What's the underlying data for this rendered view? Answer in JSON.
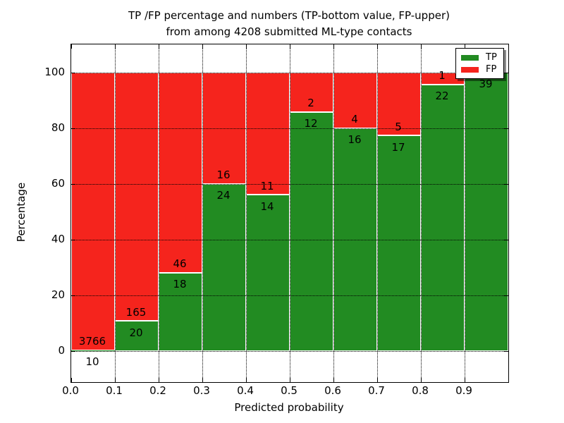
{
  "chart_data": {
    "type": "bar",
    "stacked": true,
    "title_line1": "TP /FP percentage and numbers (TP-bottom value, FP-upper)",
    "title_line2": "from among 4208 submitted ML-type contacts",
    "xlabel": "Predicted probability",
    "ylabel": "Percentage",
    "total_contacts": 4208,
    "xlim": [
      0.0,
      1.0
    ],
    "ylim": [
      -11,
      110
    ],
    "grid": "dotted black, horizontal at y multiples of 20, vertical at x multiples of 0.1",
    "legend_position": "upper right",
    "x_ticks": [
      "0.0",
      "0.1",
      "0.2",
      "0.3",
      "0.4",
      "0.5",
      "0.6",
      "0.7",
      "0.8",
      "0.9"
    ],
    "y_ticks": [
      0,
      20,
      40,
      60,
      80,
      100
    ],
    "legend": [
      {
        "label": "TP",
        "color": "#228b22"
      },
      {
        "label": "FP",
        "color": "#f5241d"
      }
    ],
    "bins": [
      {
        "x0": 0.0,
        "x1": 0.1,
        "tp": 10,
        "fp": 3766,
        "tp_pct": 0.26,
        "fp_pct": 99.74
      },
      {
        "x0": 0.1,
        "x1": 0.2,
        "tp": 20,
        "fp": 165,
        "tp_pct": 10.81,
        "fp_pct": 89.19
      },
      {
        "x0": 0.2,
        "x1": 0.3,
        "tp": 18,
        "fp": 46,
        "tp_pct": 28.13,
        "fp_pct": 71.87
      },
      {
        "x0": 0.3,
        "x1": 0.4,
        "tp": 24,
        "fp": 16,
        "tp_pct": 60.0,
        "fp_pct": 40.0
      },
      {
        "x0": 0.4,
        "x1": 0.5,
        "tp": 14,
        "fp": 11,
        "tp_pct": 56.0,
        "fp_pct": 44.0
      },
      {
        "x0": 0.5,
        "x1": 0.6,
        "tp": 12,
        "fp": 2,
        "tp_pct": 85.71,
        "fp_pct": 14.29
      },
      {
        "x0": 0.6,
        "x1": 0.7,
        "tp": 16,
        "fp": 4,
        "tp_pct": 80.0,
        "fp_pct": 20.0
      },
      {
        "x0": 0.7,
        "x1": 0.8,
        "tp": 17,
        "fp": 5,
        "tp_pct": 77.27,
        "fp_pct": 22.73
      },
      {
        "x0": 0.8,
        "x1": 0.9,
        "tp": 22,
        "fp": 1,
        "tp_pct": 95.65,
        "fp_pct": 4.35
      },
      {
        "x0": 0.9,
        "x1": 1.0,
        "tp": 39,
        "fp": 0,
        "tp_pct": 100.0,
        "fp_pct": 0.0,
        "fp_label": false
      }
    ]
  }
}
